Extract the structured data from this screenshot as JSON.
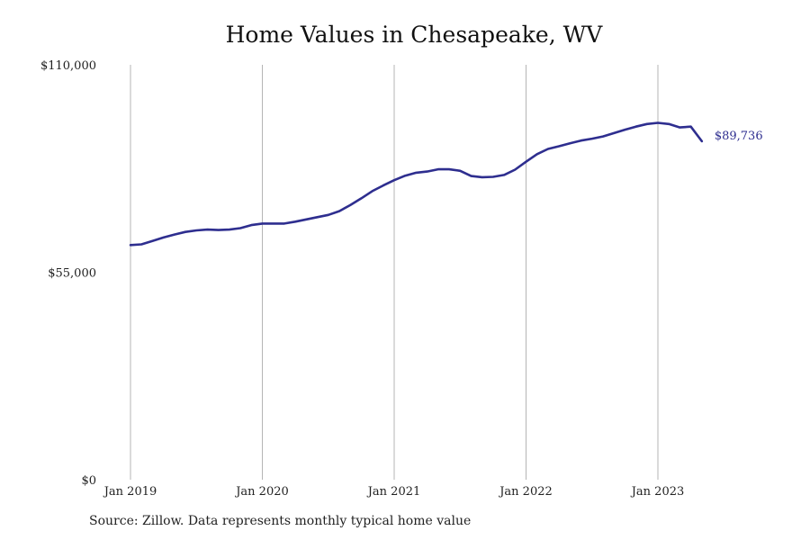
{
  "source_note": "Source: Zillow. Data represents monthly typical home value",
  "chart_data": {
    "type": "line",
    "title": "Home Values in Chesapeake, WV",
    "xlabel": "",
    "ylabel": "",
    "ylim": [
      0,
      110000
    ],
    "y_ticks": [
      {
        "value": 0,
        "label": "$0"
      },
      {
        "value": 55000,
        "label": "$55,000"
      },
      {
        "value": 110000,
        "label": "$110,000"
      }
    ],
    "x_ticks": [
      {
        "value": "2019-01",
        "label": "Jan 2019"
      },
      {
        "value": "2020-01",
        "label": "Jan 2020"
      },
      {
        "value": "2021-01",
        "label": "Jan 2021"
      },
      {
        "value": "2022-01",
        "label": "Jan 2022"
      },
      {
        "value": "2023-01",
        "label": "Jan 2023"
      }
    ],
    "grid": {
      "vertical": true,
      "horizontal": false
    },
    "line_color": "#2e2e8f",
    "end_label": "$89,736",
    "series": [
      {
        "x": [
          "2019-01",
          "2019-02",
          "2019-03",
          "2019-04",
          "2019-05",
          "2019-06",
          "2019-07",
          "2019-08",
          "2019-09",
          "2019-10",
          "2019-11",
          "2019-12",
          "2020-01",
          "2020-02",
          "2020-03",
          "2020-04",
          "2020-05",
          "2020-06",
          "2020-07",
          "2020-08",
          "2020-09",
          "2020-10",
          "2020-11",
          "2020-12",
          "2021-01",
          "2021-02",
          "2021-03",
          "2021-04",
          "2021-05",
          "2021-06",
          "2021-07",
          "2021-08",
          "2021-09",
          "2021-10",
          "2021-11",
          "2021-12",
          "2022-01",
          "2022-02",
          "2022-03",
          "2022-04",
          "2022-05",
          "2022-06",
          "2022-07",
          "2022-08",
          "2022-09",
          "2022-10",
          "2022-11",
          "2022-12",
          "2023-01",
          "2023-02",
          "2023-03",
          "2023-04",
          "2023-05"
        ],
        "values": [
          62200,
          62400,
          63300,
          64200,
          65000,
          65700,
          66100,
          66300,
          66200,
          66300,
          66700,
          67500,
          67900,
          67900,
          67900,
          68400,
          69000,
          69600,
          70200,
          71200,
          72800,
          74600,
          76500,
          78000,
          79400,
          80600,
          81400,
          81700,
          82300,
          82300,
          81900,
          80500,
          80200,
          80300,
          80800,
          82200,
          84300,
          86300,
          87700,
          88400,
          89200,
          89900,
          90400,
          91000,
          91900,
          92800,
          93600,
          94300,
          94600,
          94300,
          93400,
          93600,
          89736
        ]
      }
    ]
  }
}
